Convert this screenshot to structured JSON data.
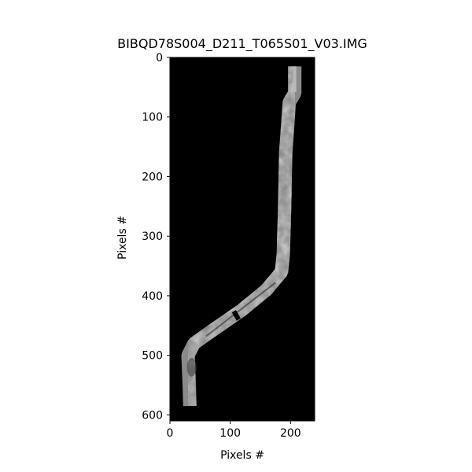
{
  "chart_data": {
    "type": "heatmap",
    "title": "BIBQD78S004_D211_T065S01_V03.IMG",
    "xlabel": "Pixels #",
    "ylabel": "Pixels #",
    "xlim": [
      0,
      240
    ],
    "ylim": [
      610,
      0
    ],
    "x_ticks": [
      0,
      100,
      200
    ],
    "y_ticks": [
      0,
      100,
      200,
      300,
      400,
      500,
      600
    ],
    "colormap": "grayscale",
    "background_value": "black",
    "image_content": "grayscale radar swath strip",
    "swath_centerline": [
      {
        "x": 207,
        "y": 15
      },
      {
        "x": 207,
        "y": 60
      },
      {
        "x": 198,
        "y": 75
      },
      {
        "x": 192,
        "y": 160
      },
      {
        "x": 190,
        "y": 260
      },
      {
        "x": 188,
        "y": 330
      },
      {
        "x": 185,
        "y": 360
      },
      {
        "x": 160,
        "y": 390
      },
      {
        "x": 118,
        "y": 425
      },
      {
        "x": 75,
        "y": 455
      },
      {
        "x": 40,
        "y": 480
      },
      {
        "x": 30,
        "y": 500
      },
      {
        "x": 32,
        "y": 550
      },
      {
        "x": 33,
        "y": 585
      }
    ],
    "colors": {
      "background": "#000000",
      "swath_dark": "#4a4a4a",
      "swath_mid": "#8a8a8a",
      "swath_light": "#b9b9b9"
    }
  }
}
